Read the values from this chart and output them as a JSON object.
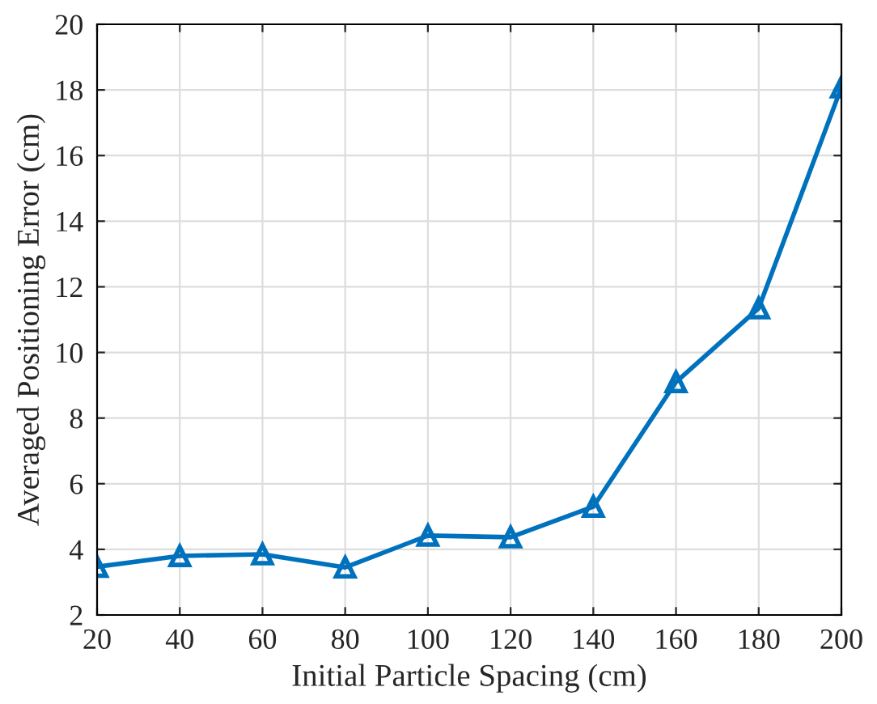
{
  "chart_data": {
    "type": "line",
    "xlabel": "Initial Particle Spacing (cm)",
    "ylabel": "Averaged Positioning Error (cm)",
    "x": [
      20,
      40,
      60,
      80,
      100,
      120,
      140,
      160,
      180,
      200
    ],
    "series": [
      {
        "color": "#0072bd",
        "values": [
          3.47,
          3.8,
          3.85,
          3.45,
          4.42,
          4.37,
          5.3,
          9.1,
          11.35,
          18.08
        ]
      }
    ],
    "xlim": [
      20,
      200
    ],
    "xticks": [
      20,
      40,
      60,
      80,
      100,
      120,
      140,
      160,
      180,
      200
    ],
    "ylim": [
      2,
      20
    ],
    "yticks": [
      2,
      4,
      6,
      8,
      10,
      12,
      14,
      16,
      18,
      20
    ],
    "grid": true,
    "marker": "triangle",
    "line_style": "solid",
    "legend": false
  }
}
